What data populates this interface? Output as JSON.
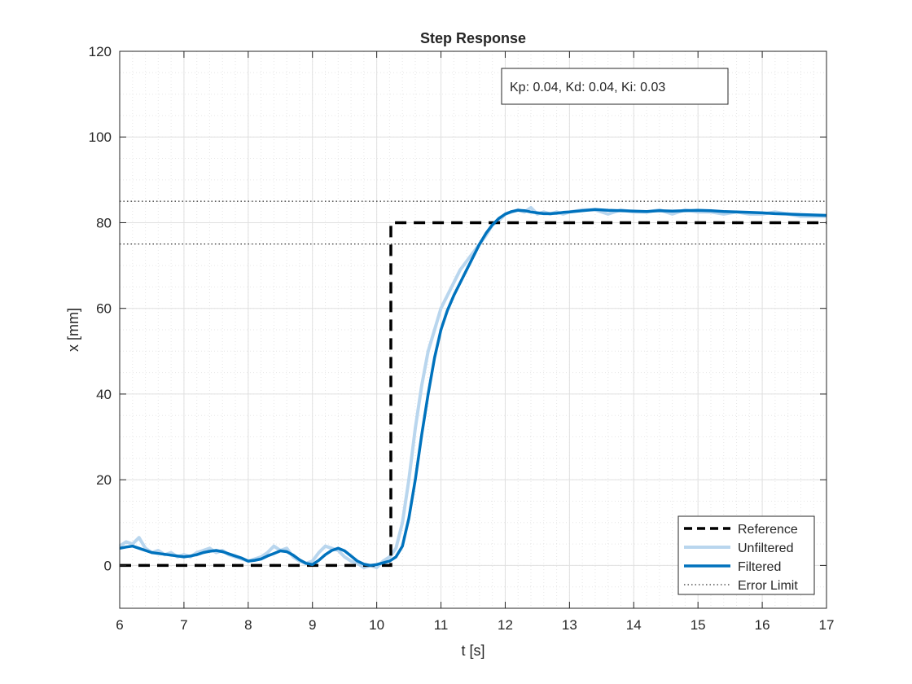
{
  "chart_data": {
    "type": "line",
    "title": "Step Response",
    "xlabel": "t [s]",
    "ylabel": "x [mm]",
    "xlim": [
      6,
      17
    ],
    "ylim": [
      -10,
      120
    ],
    "xticks": [
      "6",
      "7",
      "8",
      "9",
      "10",
      "11",
      "12",
      "13",
      "14",
      "15",
      "16",
      "17"
    ],
    "yticks": [
      "0",
      "20",
      "40",
      "60",
      "80",
      "100",
      "120"
    ],
    "grid": true,
    "minor_grid": true,
    "legend_position": "bottom-right",
    "annotation": "Kp: 0.04, Kd: 0.04, Ki: 0.03",
    "colors": {
      "reference": "#000000",
      "unfiltered": "#b9d6ee",
      "filtered": "#0072bd",
      "error_limit": "#000000",
      "grid": "#e0e0e0",
      "axis": "#262626"
    },
    "series": [
      {
        "name": "Reference",
        "style": "dashed",
        "x": [
          6,
          10.22,
          10.22,
          17
        ],
        "y": [
          0,
          0,
          80,
          80
        ]
      },
      {
        "name": "Unfiltered",
        "style": "solid-light",
        "x": [
          6.0,
          6.1,
          6.2,
          6.3,
          6.4,
          6.5,
          6.6,
          6.7,
          6.8,
          6.9,
          7.0,
          7.1,
          7.2,
          7.3,
          7.4,
          7.5,
          7.6,
          7.7,
          7.8,
          7.9,
          8.0,
          8.1,
          8.2,
          8.3,
          8.4,
          8.5,
          8.6,
          8.7,
          8.8,
          8.9,
          9.0,
          9.1,
          9.2,
          9.3,
          9.4,
          9.5,
          9.6,
          9.7,
          9.8,
          9.9,
          10.0,
          10.1,
          10.2,
          10.3,
          10.4,
          10.5,
          10.6,
          10.7,
          10.8,
          10.9,
          11.0,
          11.1,
          11.2,
          11.3,
          11.4,
          11.5,
          11.6,
          11.7,
          11.8,
          11.9,
          12.0,
          12.1,
          12.2,
          12.3,
          12.4,
          12.5,
          12.6,
          12.7,
          12.8,
          12.9,
          13.0,
          13.2,
          13.4,
          13.6,
          13.8,
          14.0,
          14.2,
          14.4,
          14.6,
          14.8,
          15.0,
          15.2,
          15.4,
          15.6,
          15.8,
          16.0,
          16.2,
          16.4,
          16.6,
          16.8,
          17.0
        ],
        "y": [
          4.5,
          5.5,
          5.0,
          6.5,
          4.0,
          3.0,
          3.5,
          2.5,
          3.0,
          2.0,
          2.5,
          2.0,
          3.0,
          3.5,
          4.0,
          3.0,
          3.5,
          2.5,
          2.0,
          1.5,
          1.0,
          1.5,
          2.0,
          3.0,
          4.5,
          3.5,
          4.0,
          2.0,
          1.0,
          0.5,
          1.0,
          3.0,
          4.5,
          4.0,
          3.5,
          2.0,
          1.0,
          0.5,
          -0.5,
          0.0,
          -0.5,
          1.0,
          2.0,
          4.0,
          10.0,
          20.0,
          32.0,
          42.0,
          50.0,
          55.0,
          60.0,
          63.0,
          66.0,
          69.0,
          71.0,
          73.0,
          75.0,
          77.0,
          79.5,
          80.5,
          82.0,
          82.5,
          83.0,
          82.5,
          83.5,
          82.0,
          82.5,
          82.0,
          82.5,
          82.0,
          82.5,
          83.0,
          83.0,
          82.0,
          83.0,
          82.5,
          82.5,
          83.0,
          82.0,
          83.0,
          82.5,
          82.5,
          82.0,
          82.5,
          82.0,
          82.0,
          82.5,
          82.0,
          81.5,
          81.5,
          81.5
        ]
      },
      {
        "name": "Filtered",
        "style": "solid-thick",
        "x": [
          6.0,
          6.1,
          6.2,
          6.3,
          6.4,
          6.5,
          6.6,
          6.7,
          6.8,
          6.9,
          7.0,
          7.1,
          7.2,
          7.3,
          7.4,
          7.5,
          7.6,
          7.7,
          7.8,
          7.9,
          8.0,
          8.1,
          8.2,
          8.3,
          8.4,
          8.5,
          8.6,
          8.7,
          8.8,
          8.9,
          9.0,
          9.1,
          9.2,
          9.3,
          9.4,
          9.5,
          9.6,
          9.7,
          9.8,
          9.9,
          10.0,
          10.1,
          10.2,
          10.3,
          10.4,
          10.5,
          10.6,
          10.7,
          10.8,
          10.9,
          11.0,
          11.1,
          11.2,
          11.3,
          11.4,
          11.5,
          11.6,
          11.7,
          11.8,
          11.9,
          12.0,
          12.1,
          12.2,
          12.3,
          12.4,
          12.5,
          12.6,
          12.7,
          12.8,
          12.9,
          13.0,
          13.2,
          13.4,
          13.6,
          13.8,
          14.0,
          14.2,
          14.4,
          14.6,
          14.8,
          15.0,
          15.2,
          15.4,
          15.6,
          15.8,
          16.0,
          16.2,
          16.4,
          16.6,
          16.8,
          17.0
        ],
        "y": [
          4.0,
          4.3,
          4.5,
          4.0,
          3.5,
          3.0,
          2.8,
          2.6,
          2.4,
          2.2,
          2.0,
          2.2,
          2.5,
          3.0,
          3.3,
          3.5,
          3.2,
          2.7,
          2.2,
          1.7,
          1.0,
          1.2,
          1.5,
          2.2,
          2.8,
          3.4,
          3.2,
          2.4,
          1.3,
          0.5,
          0.2,
          1.2,
          2.5,
          3.5,
          4.0,
          3.4,
          2.2,
          1.0,
          0.3,
          0.0,
          0.2,
          0.6,
          1.0,
          2.0,
          4.5,
          11.0,
          20.0,
          30.5,
          40.0,
          48.5,
          55.0,
          59.5,
          63.0,
          66.0,
          69.0,
          72.0,
          75.0,
          77.5,
          79.5,
          81.0,
          82.0,
          82.6,
          82.9,
          82.8,
          82.5,
          82.3,
          82.1,
          82.1,
          82.2,
          82.4,
          82.5,
          82.8,
          83.1,
          82.9,
          82.8,
          82.7,
          82.6,
          82.8,
          82.7,
          82.8,
          82.9,
          82.8,
          82.6,
          82.5,
          82.4,
          82.3,
          82.1,
          82.0,
          81.9,
          81.8,
          81.7
        ]
      },
      {
        "name": "Error Limit",
        "style": "dotted",
        "x": [
          6,
          17
        ],
        "y_levels": [
          85,
          75
        ]
      }
    ]
  }
}
